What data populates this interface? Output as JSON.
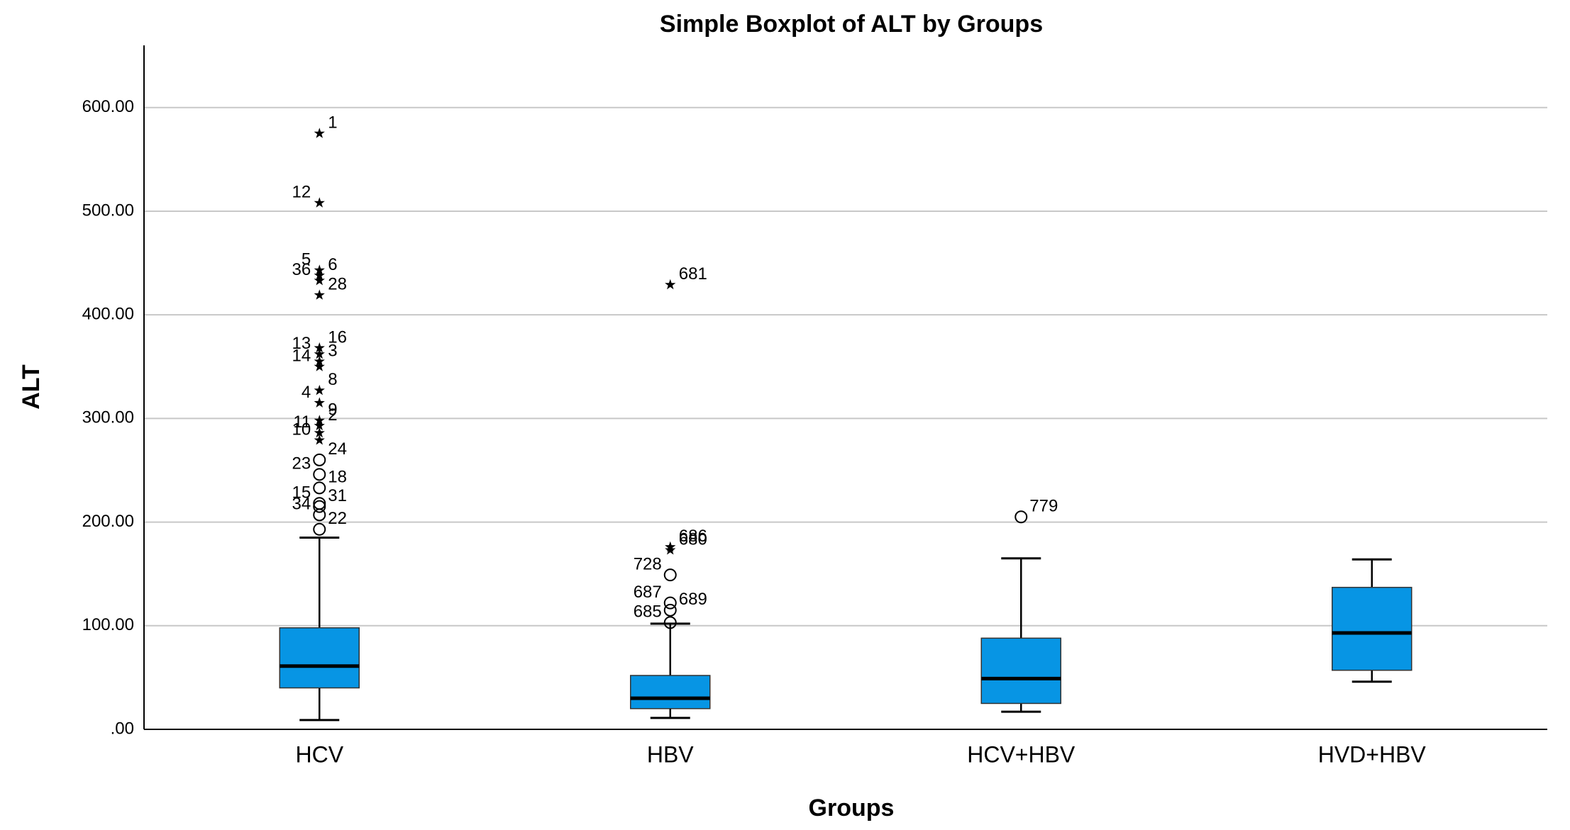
{
  "chart_data": {
    "type": "boxplot",
    "title": "Simple Boxplot of ALT by Groups",
    "x_label": "Groups",
    "y_label": "ALT",
    "categories": [
      "HCV",
      "HBV",
      "HCV+HBV",
      "HVD+HBV"
    ],
    "color": "#0795e4",
    "ylim": [
      0,
      660
    ],
    "yticks": [
      {
        "value": 0,
        "label": ".00"
      },
      {
        "value": 100,
        "label": "100.00"
      },
      {
        "value": 200,
        "label": "200.00"
      },
      {
        "value": 300,
        "label": "300.00"
      },
      {
        "value": 400,
        "label": "400.00"
      },
      {
        "value": 500,
        "label": "500.00"
      },
      {
        "value": 600,
        "label": "600.00"
      }
    ],
    "grid": true,
    "boxes": [
      {
        "min": 9,
        "q1": 40,
        "median": 61,
        "q3": 98,
        "max": 185,
        "outliers": [
          {
            "value": 575,
            "label": "1",
            "marker": "star"
          },
          {
            "value": 508,
            "label": "12",
            "marker": "star"
          },
          {
            "value": 438,
            "label": "6",
            "marker": "star"
          },
          {
            "value": 443,
            "label": "5",
            "marker": "star"
          },
          {
            "value": 419,
            "label": "28",
            "marker": "star"
          },
          {
            "value": 433,
            "label": "36",
            "marker": "star"
          },
          {
            "value": 368,
            "label": "16",
            "marker": "star"
          },
          {
            "value": 362,
            "label": "13",
            "marker": "star"
          },
          {
            "value": 355,
            "label": "3",
            "marker": "star"
          },
          {
            "value": 350,
            "label": "14",
            "marker": "star"
          },
          {
            "value": 327,
            "label": "8",
            "marker": "star"
          },
          {
            "value": 315,
            "label": "4",
            "marker": "star"
          },
          {
            "value": 298,
            "label": "9",
            "marker": "star"
          },
          {
            "value": 286,
            "label": "11",
            "marker": "star"
          },
          {
            "value": 293,
            "label": "2",
            "marker": "star"
          },
          {
            "value": 279,
            "label": "10",
            "marker": "star"
          },
          {
            "value": 260,
            "label": "24",
            "marker": "circle"
          },
          {
            "value": 246,
            "label": "23",
            "marker": "circle"
          },
          {
            "value": 233,
            "label": "18",
            "marker": "circle"
          },
          {
            "value": 218,
            "label": "15",
            "marker": "circle"
          },
          {
            "value": 215,
            "label": "31",
            "marker": "circle"
          },
          {
            "value": 207,
            "label": "34",
            "marker": "circle"
          },
          {
            "value": 193,
            "label": "22",
            "marker": "circle"
          }
        ]
      },
      {
        "min": 11,
        "q1": 20,
        "median": 30,
        "q3": 52,
        "max": 102,
        "outliers": [
          {
            "value": 429,
            "label": "681",
            "marker": "star"
          },
          {
            "value": 149,
            "label": "728",
            "marker": "circle"
          },
          {
            "value": 176,
            "label": "686",
            "marker": "star"
          },
          {
            "value": 103,
            "label": "685",
            "marker": "circle"
          },
          {
            "value": 173,
            "label": "680",
            "marker": "star"
          },
          {
            "value": 122,
            "label": "687",
            "marker": "circle"
          },
          {
            "value": 115,
            "label": "689",
            "marker": "circle"
          }
        ]
      },
      {
        "min": 17,
        "q1": 25,
        "median": 49,
        "q3": 88,
        "max": 165,
        "outliers": [
          {
            "value": 205,
            "label": "779",
            "marker": "circle"
          }
        ]
      },
      {
        "min": 46,
        "q1": 57,
        "median": 93,
        "q3": 137,
        "max": 164,
        "outliers": []
      }
    ]
  }
}
